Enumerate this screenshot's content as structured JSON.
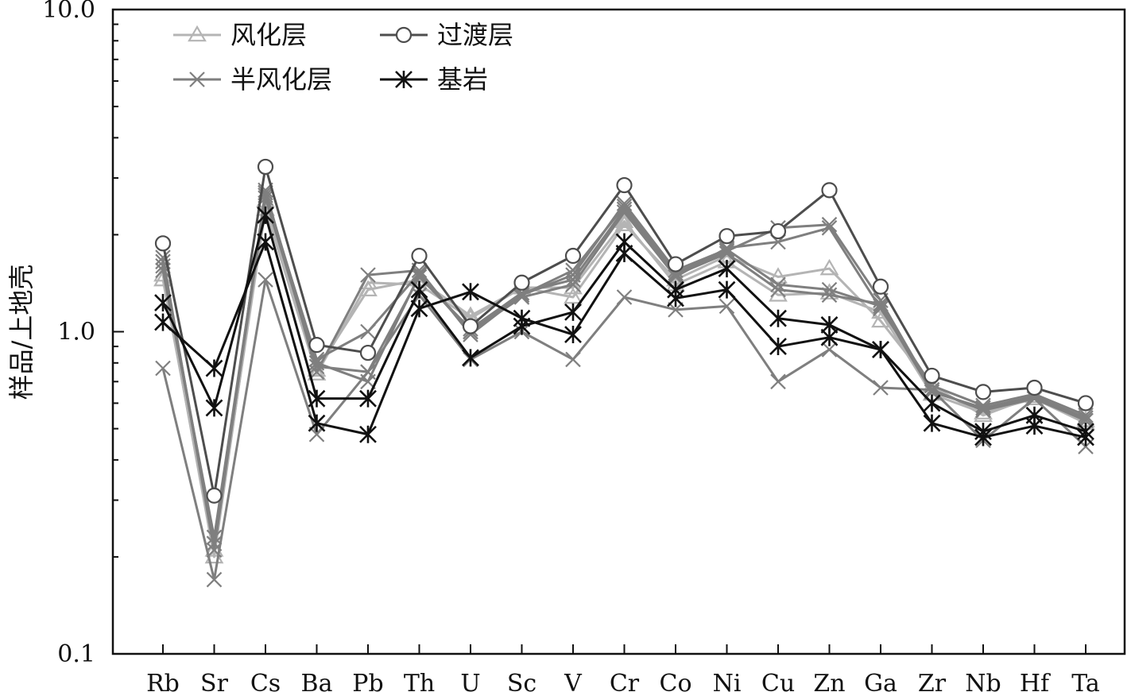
{
  "chart_data": {
    "type": "line",
    "yscale": "log",
    "ylim": [
      0.1,
      10.0
    ],
    "yticks": [
      "0.1",
      "1.0",
      "10.0"
    ],
    "ylabel": "样品/上地壳",
    "xlabel": "",
    "title": "",
    "grid": false,
    "legend_position": "top-left",
    "categories": [
      "Rb",
      "Sr",
      "Cs",
      "Ba",
      "Pb",
      "Th",
      "U",
      "Sc",
      "V",
      "Cr",
      "Co",
      "Ni",
      "Cu",
      "Zn",
      "Ga",
      "Zr",
      "Nb",
      "Hf",
      "Ta"
    ],
    "legend": [
      {
        "label": "风化层",
        "marker": "triangle",
        "color": "#b4b4b4"
      },
      {
        "label": "过渡层",
        "marker": "circle",
        "color": "#4d4d4d"
      },
      {
        "label": "半风化层",
        "marker": "x",
        "color": "#7f7f7f"
      },
      {
        "label": "基岩",
        "marker": "asterisk",
        "color": "#111111"
      }
    ],
    "series": [
      {
        "group": "风化层",
        "marker": "triangle",
        "color": "#b4b4b4",
        "values": [
          1.5,
          0.2,
          2.55,
          0.76,
          1.35,
          1.45,
          1.12,
          1.37,
          1.28,
          2.15,
          1.45,
          1.72,
          1.48,
          1.57,
          1.08,
          0.68,
          0.55,
          0.63,
          0.53
        ]
      },
      {
        "group": "风化层",
        "marker": "triangle",
        "color": "#b4b4b4",
        "values": [
          1.45,
          0.21,
          2.4,
          0.74,
          1.42,
          1.4,
          1.1,
          1.37,
          1.37,
          2.2,
          1.4,
          1.65,
          1.3,
          1.32,
          1.15,
          0.64,
          0.56,
          0.62,
          0.52
        ]
      },
      {
        "group": "过渡层",
        "marker": "circle",
        "color": "#4d4d4d",
        "values": [
          1.88,
          0.31,
          3.25,
          0.91,
          0.86,
          1.72,
          1.04,
          1.42,
          1.72,
          2.85,
          1.62,
          1.98,
          2.05,
          2.75,
          1.38,
          0.73,
          0.65,
          0.67,
          0.6
        ]
      },
      {
        "group": "半风化层",
        "marker": "x",
        "color": "#7f7f7f",
        "values": [
          1.65,
          0.22,
          2.7,
          0.8,
          0.7,
          1.5,
          1.0,
          1.3,
          1.5,
          2.5,
          1.55,
          1.8,
          1.4,
          1.35,
          1.2,
          0.65,
          0.58,
          0.63,
          0.53
        ]
      },
      {
        "group": "半风化层",
        "marker": "x",
        "color": "#7f7f7f",
        "values": [
          1.6,
          0.22,
          2.6,
          0.78,
          0.75,
          1.48,
          1.02,
          1.32,
          1.45,
          2.4,
          1.5,
          1.75,
          1.35,
          1.3,
          1.22,
          0.66,
          0.57,
          0.63,
          0.54
        ]
      },
      {
        "group": "半风化层",
        "marker": "x",
        "color": "#7f7f7f",
        "values": [
          1.55,
          0.23,
          2.65,
          0.82,
          1.0,
          1.52,
          1.0,
          1.28,
          1.4,
          2.35,
          1.48,
          1.82,
          1.9,
          2.1,
          1.18,
          0.68,
          0.59,
          0.64,
          0.55
        ]
      },
      {
        "group": "半风化层",
        "marker": "x",
        "color": "#7f7f7f",
        "values": [
          1.7,
          0.21,
          2.75,
          0.75,
          1.5,
          1.55,
          0.98,
          1.3,
          1.55,
          2.45,
          1.52,
          1.78,
          2.1,
          2.15,
          1.25,
          0.66,
          0.57,
          0.62,
          0.53
        ]
      },
      {
        "group": "半风化层",
        "marker": "x",
        "color": "#7f7f7f",
        "values": [
          0.77,
          0.17,
          1.45,
          0.48,
          0.75,
          1.3,
          0.82,
          1.0,
          0.82,
          1.28,
          1.17,
          1.2,
          0.7,
          0.88,
          0.67,
          0.66,
          0.46,
          0.62,
          0.44
        ]
      },
      {
        "group": "基岩",
        "marker": "asterisk",
        "color": "#111111",
        "values": [
          1.23,
          0.58,
          2.3,
          0.62,
          0.62,
          1.35,
          0.83,
          1.04,
          1.15,
          1.9,
          1.35,
          1.57,
          1.1,
          1.05,
          0.88,
          0.6,
          0.49,
          0.55,
          0.49
        ]
      },
      {
        "group": "基岩",
        "marker": "asterisk",
        "color": "#111111",
        "values": [
          1.07,
          0.77,
          1.9,
          0.52,
          0.48,
          1.18,
          1.33,
          1.1,
          0.98,
          1.75,
          1.27,
          1.35,
          0.9,
          0.96,
          0.88,
          0.52,
          0.47,
          0.51,
          0.47
        ]
      }
    ]
  }
}
